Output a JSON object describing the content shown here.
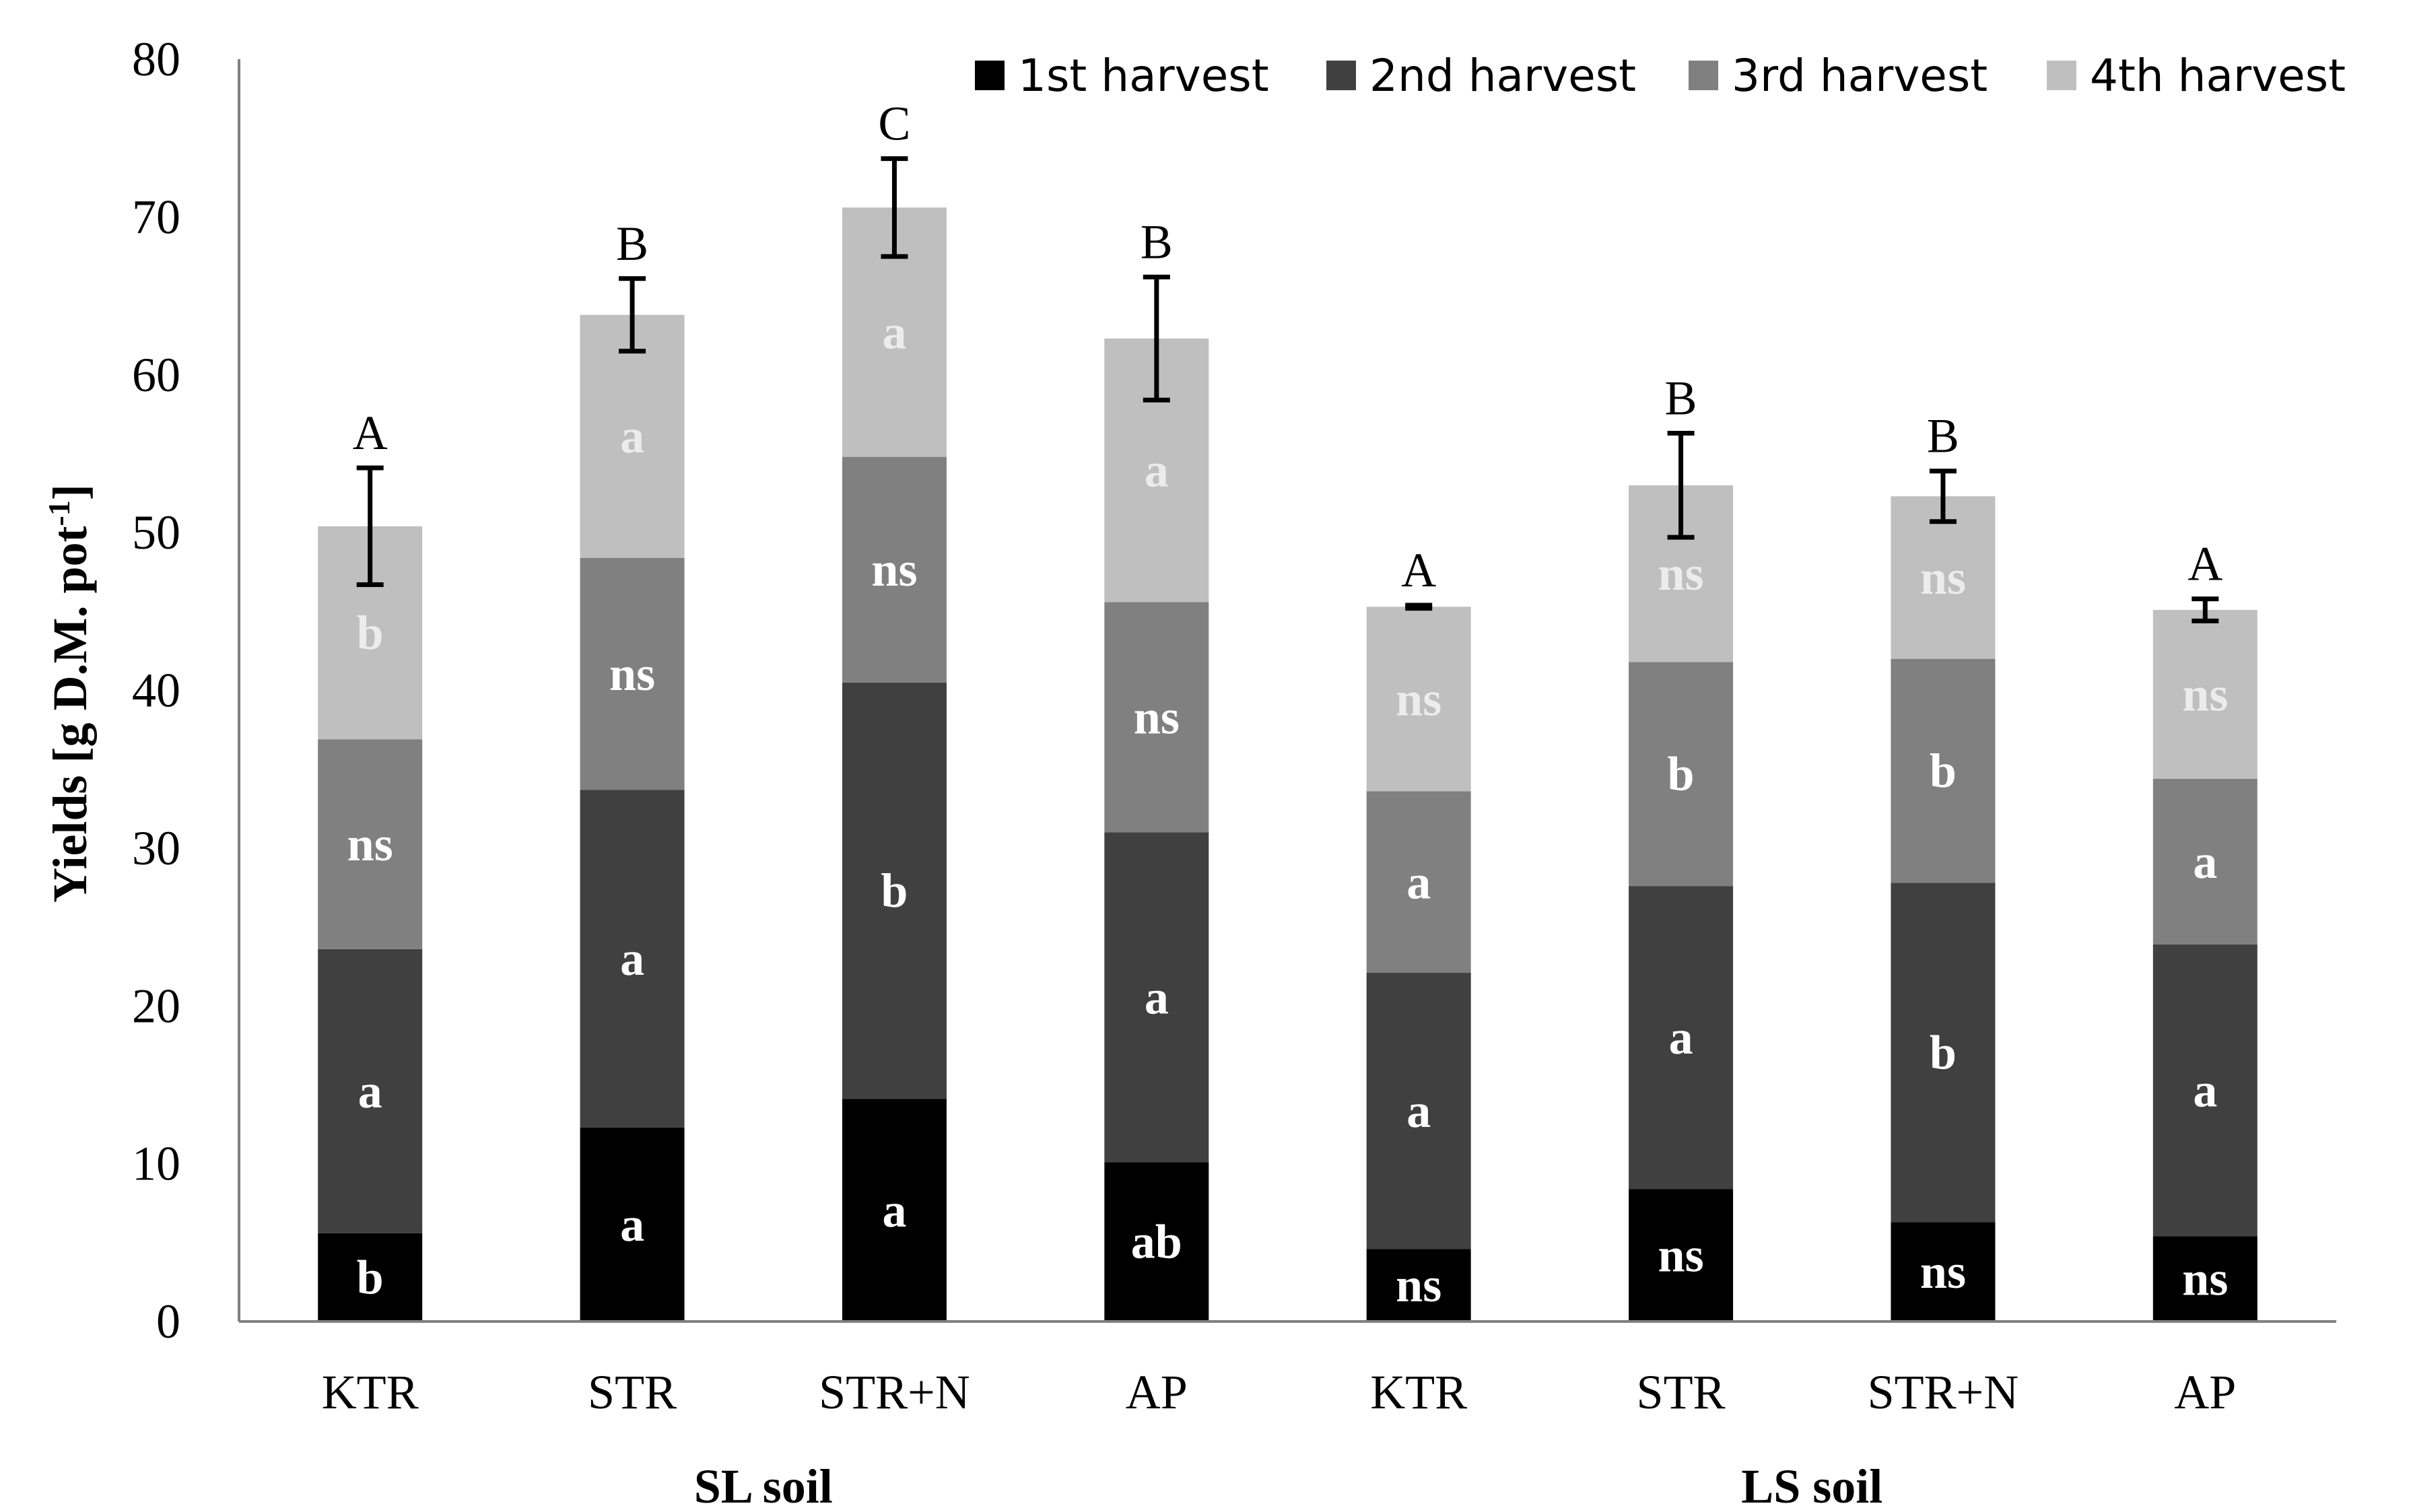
{
  "chart_data": {
    "type": "bar",
    "stacked": true,
    "title": "",
    "xlabel": "",
    "ylabel_main": "Yields [g D.M. pot",
    "ylabel_sup": "-1",
    "ylabel_end": "]",
    "ylim": [
      0,
      80
    ],
    "yticks": [
      "0",
      "10",
      "20",
      "30",
      "40",
      "50",
      "60",
      "70",
      "80"
    ],
    "ytick_values": [
      0,
      10,
      20,
      30,
      40,
      50,
      60,
      70,
      80
    ],
    "categories": [
      "KTR",
      "STR",
      "STR+N",
      "AP",
      "KTR",
      "STR",
      "STR+N",
      "AP"
    ],
    "groups": [
      {
        "label": "SL soil",
        "from": 0,
        "to": 3
      },
      {
        "label": "LS soil",
        "from": 4,
        "to": 7
      }
    ],
    "series": [
      {
        "name": "1st harvest",
        "color": "#000000",
        "label_color": "#ffffff",
        "values": [
          5.6,
          12.3,
          14.1,
          10.1,
          4.6,
          8.4,
          6.3,
          5.4
        ],
        "letters": [
          "b",
          "a",
          "a",
          "ab",
          "ns",
          "ns",
          "ns",
          "ns"
        ]
      },
      {
        "name": "2nd harvest",
        "color": "#404040",
        "label_color": "#ffffff",
        "values": [
          18.0,
          21.4,
          26.4,
          20.9,
          17.5,
          19.2,
          21.5,
          18.5
        ],
        "letters": [
          "a",
          "a",
          "b",
          "a",
          "a",
          "a",
          "b",
          "a"
        ]
      },
      {
        "name": "3rd harvest",
        "color": "#808080",
        "label_color": "#ffffff",
        "values": [
          13.3,
          14.7,
          14.3,
          14.6,
          11.5,
          14.2,
          14.2,
          10.5
        ],
        "letters": [
          "ns",
          "ns",
          "ns",
          "ns",
          "a",
          "b",
          "b",
          "a"
        ]
      },
      {
        "name": "4th harvest",
        "color": "#bfbfbf",
        "label_color": "#ececec",
        "values": [
          13.5,
          15.4,
          15.8,
          16.7,
          11.7,
          11.2,
          10.3,
          10.7
        ],
        "letters": [
          "b",
          "a",
          "a",
          "a",
          "ns",
          "ns",
          "ns",
          "ns"
        ]
      }
    ],
    "totals": [
      50.4,
      63.8,
      70.6,
      62.3,
      45.3,
      53.0,
      52.3,
      45.1
    ],
    "errors": [
      3.7,
      2.3,
      3.1,
      3.9,
      0.1,
      3.3,
      1.6,
      0.7
    ],
    "total_letters": [
      "A",
      "B",
      "C",
      "B",
      "A",
      "B",
      "B",
      "A"
    ],
    "legend_position": "top-right",
    "grid": false
  }
}
